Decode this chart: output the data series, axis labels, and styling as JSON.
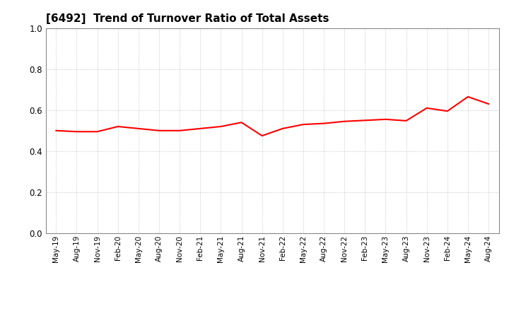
{
  "title": "[6492]  Trend of Turnover Ratio of Total Assets",
  "title_fontsize": 11,
  "line_color": "#FF0000",
  "line_width": 1.5,
  "background_color": "#ffffff",
  "ylim": [
    0.0,
    1.0
  ],
  "yticks": [
    0.0,
    0.2,
    0.4,
    0.6,
    0.8,
    1.0
  ],
  "x_labels": [
    "May-19",
    "Aug-19",
    "Nov-19",
    "Feb-20",
    "May-20",
    "Aug-20",
    "Nov-20",
    "Feb-21",
    "May-21",
    "Aug-21",
    "Nov-21",
    "Feb-22",
    "May-22",
    "Aug-22",
    "Nov-22",
    "Feb-23",
    "May-23",
    "Aug-23",
    "Nov-23",
    "Feb-24",
    "May-24",
    "Aug-24"
  ],
  "values": [
    0.5,
    0.495,
    0.495,
    0.52,
    0.51,
    0.5,
    0.5,
    0.51,
    0.52,
    0.54,
    0.475,
    0.51,
    0.53,
    0.535,
    0.545,
    0.55,
    0.555,
    0.548,
    0.61,
    0.595,
    0.665,
    0.63
  ],
  "grid_color": "#aaaaaa",
  "grid_linewidth": 0.5,
  "tick_fontsize": 7.5,
  "ytick_fontsize": 8.5
}
